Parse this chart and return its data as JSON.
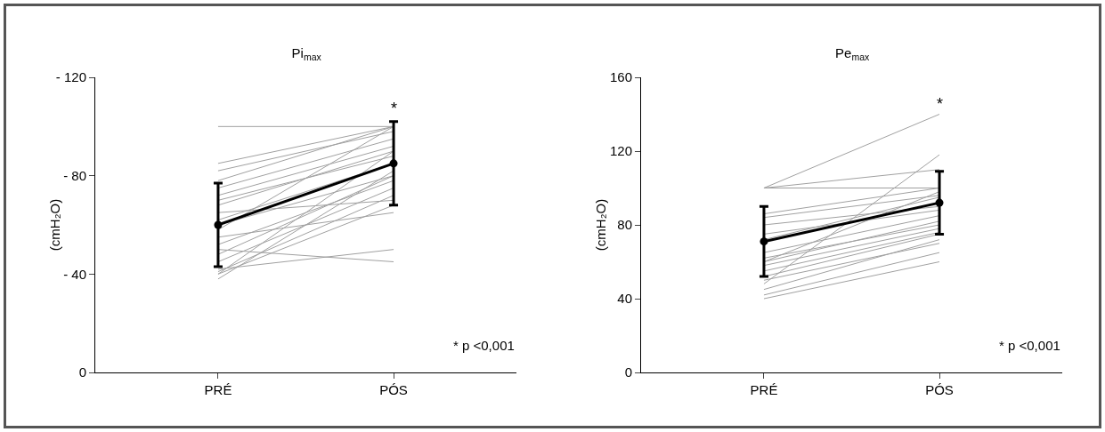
{
  "chart_data": [
    {
      "type": "line",
      "title": "Pi$_{max}$",
      "ylabel": "(cmH₂O)",
      "categories": [
        "PRÉ",
        "PÓS"
      ],
      "ylim": [
        0,
        -120
      ],
      "yticks": [
        {
          "value": 0,
          "label": "0"
        },
        {
          "value": -40,
          "label": "- 40"
        },
        {
          "value": -80,
          "label": "- 80"
        },
        {
          "value": -120,
          "label": "- 120"
        }
      ],
      "grid": false,
      "annotations": [
        {
          "text": "*",
          "x": "PÓS",
          "y": -103
        },
        "* p <0,001"
      ],
      "series": [
        {
          "color": "#a0a0a0",
          "marker": "none",
          "values": [
            -100,
            -100
          ]
        },
        {
          "color": "#a0a0a0",
          "marker": "none",
          "values": [
            -85,
            -100
          ]
        },
        {
          "color": "#a0a0a0",
          "marker": "none",
          "values": [
            -82,
            -98
          ]
        },
        {
          "color": "#a0a0a0",
          "marker": "none",
          "values": [
            -78,
            -100
          ]
        },
        {
          "color": "#a0a0a0",
          "marker": "none",
          "values": [
            -75,
            -95
          ]
        },
        {
          "color": "#a0a0a0",
          "marker": "none",
          "values": [
            -72,
            -92
          ]
        },
        {
          "color": "#a0a0a0",
          "marker": "none",
          "values": [
            -70,
            -88
          ]
        },
        {
          "color": "#a0a0a0",
          "marker": "none",
          "values": [
            -68,
            -90
          ]
        },
        {
          "color": "#a0a0a0",
          "marker": "none",
          "values": [
            -65,
            -70
          ]
        },
        {
          "color": "#a0a0a0",
          "marker": "none",
          "values": [
            -62,
            -85
          ]
        },
        {
          "color": "#a0a0a0",
          "marker": "none",
          "values": [
            -60,
            -80
          ]
        },
        {
          "color": "#a0a0a0",
          "marker": "none",
          "values": [
            -58,
            -100
          ]
        },
        {
          "color": "#a0a0a0",
          "marker": "none",
          "values": [
            -55,
            -65
          ]
        },
        {
          "color": "#a0a0a0",
          "marker": "none",
          "values": [
            -52,
            -78
          ]
        },
        {
          "color": "#a0a0a0",
          "marker": "none",
          "values": [
            -50,
            -45
          ]
        },
        {
          "color": "#a0a0a0",
          "marker": "none",
          "values": [
            -48,
            -80
          ]
        },
        {
          "color": "#a0a0a0",
          "marker": "none",
          "values": [
            -45,
            -75
          ]
        },
        {
          "color": "#a0a0a0",
          "marker": "none",
          "values": [
            -42,
            -50
          ]
        },
        {
          "color": "#a0a0a0",
          "marker": "none",
          "values": [
            -40,
            -90
          ]
        },
        {
          "color": "#a0a0a0",
          "marker": "none",
          "values": [
            -40,
            -68
          ]
        },
        {
          "color": "#a0a0a0",
          "marker": "none",
          "values": [
            -38,
            -82
          ]
        },
        {
          "color": "#a0a0a0",
          "marker": "none",
          "values": [
            -41,
            -72
          ]
        },
        {
          "color": "#000000",
          "marker": "circle",
          "values": [
            -60,
            -85
          ],
          "errors": [
            17,
            17
          ]
        }
      ]
    },
    {
      "type": "line",
      "title": "Pe$_{max}$",
      "ylabel": "(cmH₂O)",
      "categories": [
        "PRÉ",
        "PÓS"
      ],
      "ylim": [
        0,
        160
      ],
      "yticks": [
        0,
        40,
        80,
        120,
        160
      ],
      "grid": false,
      "annotations": [
        {
          "text": "*",
          "x": "PÓS",
          "y": 140
        },
        "* p <0,001"
      ],
      "series": [
        {
          "color": "#a0a0a0",
          "marker": "none",
          "values": [
            100,
            100
          ]
        },
        {
          "color": "#a0a0a0",
          "marker": "none",
          "values": [
            100,
            110
          ]
        },
        {
          "color": "#a0a0a0",
          "marker": "none",
          "values": [
            100,
            140
          ]
        },
        {
          "color": "#a0a0a0",
          "marker": "none",
          "values": [
            86,
            100
          ]
        },
        {
          "color": "#a0a0a0",
          "marker": "none",
          "values": [
            84,
            96
          ]
        },
        {
          "color": "#a0a0a0",
          "marker": "none",
          "values": [
            80,
            90
          ]
        },
        {
          "color": "#a0a0a0",
          "marker": "none",
          "values": [
            75,
            88
          ]
        },
        {
          "color": "#a0a0a0",
          "marker": "none",
          "values": [
            72,
            95
          ]
        },
        {
          "color": "#a0a0a0",
          "marker": "none",
          "values": [
            65,
            85
          ]
        },
        {
          "color": "#a0a0a0",
          "marker": "none",
          "values": [
            62,
            80
          ]
        },
        {
          "color": "#a0a0a0",
          "marker": "none",
          "values": [
            60,
            82
          ]
        },
        {
          "color": "#a0a0a0",
          "marker": "none",
          "values": [
            60,
            98
          ]
        },
        {
          "color": "#a0a0a0",
          "marker": "none",
          "values": [
            58,
            78
          ]
        },
        {
          "color": "#a0a0a0",
          "marker": "none",
          "values": [
            55,
            76
          ]
        },
        {
          "color": "#a0a0a0",
          "marker": "none",
          "values": [
            52,
            75
          ]
        },
        {
          "color": "#a0a0a0",
          "marker": "none",
          "values": [
            50,
            70
          ]
        },
        {
          "color": "#a0a0a0",
          "marker": "none",
          "values": [
            48,
            118
          ]
        },
        {
          "color": "#a0a0a0",
          "marker": "none",
          "values": [
            45,
            72
          ]
        },
        {
          "color": "#a0a0a0",
          "marker": "none",
          "values": [
            42,
            65
          ]
        },
        {
          "color": "#a0a0a0",
          "marker": "none",
          "values": [
            40,
            60
          ]
        },
        {
          "color": "#000000",
          "marker": "circle",
          "values": [
            71,
            92
          ],
          "errors": [
            19,
            17
          ]
        }
      ]
    }
  ]
}
